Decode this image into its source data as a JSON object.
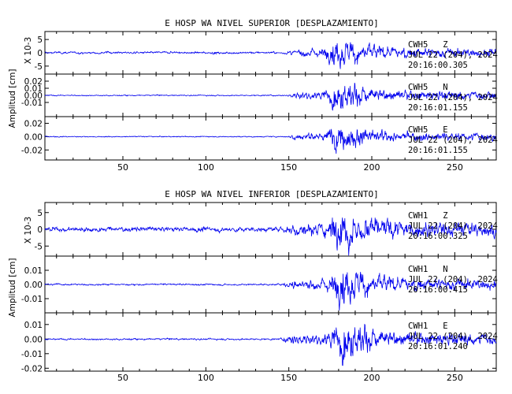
{
  "colors": {
    "trace": "#0000ee",
    "axis": "#000000",
    "background": "#ffffff"
  },
  "chart_data": [
    {
      "type": "line",
      "title": "E HOSP WA NIVEL SUPERIOR [DESPLAZAMIENTO]",
      "ylabel": "Amplitud [cm]",
      "xlim": [
        3,
        275
      ],
      "x_ticks": [
        50,
        100,
        150,
        200,
        250
      ],
      "event_start": 148,
      "event_peak": 178,
      "panels": [
        {
          "channel": "CWH5   Z",
          "date": "JUL 22 (204), 2024",
          "time": "20:16:00.305",
          "scale_label": "X 10-3",
          "ylim": [
            -8,
            8
          ],
          "yticks": [
            5,
            0,
            -5
          ],
          "ytick_labels": [
            "5",
            "0",
            "-5"
          ],
          "noise_amp": 0.6,
          "event_amp": 5.8
        },
        {
          "channel": "CWH5   N",
          "date": "JUL 22 (204), 2024",
          "time": "20:16:01.155",
          "ylim": [
            -0.03,
            0.03
          ],
          "yticks": [
            0.02,
            0.01,
            0.0,
            -0.01
          ],
          "ytick_labels": [
            "0.02",
            "0.01",
            "0.00",
            "-0.01"
          ],
          "noise_amp": 0.0012,
          "event_amp": 0.022
        },
        {
          "channel": "CWH5   E",
          "date": "JUL 22 (204), 2024",
          "time": "20:16:01.155",
          "ylim": [
            -0.035,
            0.03
          ],
          "yticks": [
            0.02,
            0.0,
            -0.02
          ],
          "ytick_labels": [
            "0.02",
            "0.00",
            "-0.02"
          ],
          "noise_amp": 0.0012,
          "event_amp": 0.022
        }
      ]
    },
    {
      "type": "line",
      "title": "E HOSP WA NIVEL INFERIOR [DESPLAZAMIENTO]",
      "ylabel": "Amplitud [cm]",
      "xlim": [
        3,
        275
      ],
      "x_ticks": [
        50,
        100,
        150,
        200,
        250
      ],
      "event_start": 145,
      "event_peak": 180,
      "panels": [
        {
          "channel": "CWH1   Z",
          "date": "JUL 22 (204), 2024",
          "time": "20:16:00.325",
          "scale_label": "X 10-3",
          "ylim": [
            -8,
            8
          ],
          "yticks": [
            5,
            0,
            -5
          ],
          "ytick_labels": [
            "5",
            "0",
            "-5"
          ],
          "noise_amp": 1.1,
          "event_amp": 6.2
        },
        {
          "channel": "CWH1   N",
          "date": "JUL 22 (204), 2024",
          "time": "20:16:00.415",
          "ylim": [
            -0.02,
            0.02
          ],
          "yticks": [
            0.01,
            0.0,
            -0.01
          ],
          "ytick_labels": [
            "0.01",
            "0.00",
            "-0.01"
          ],
          "noise_amp": 0.0009,
          "event_amp": 0.015
        },
        {
          "channel": "CWH1   E",
          "date": "JUL 22 (204), 2024",
          "time": "20:16:01.240",
          "ylim": [
            -0.022,
            0.018
          ],
          "yticks": [
            0.01,
            0.0,
            -0.01,
            -0.02
          ],
          "ytick_labels": [
            "0.01",
            "0.00",
            "-0.01",
            "-0.02"
          ],
          "noise_amp": 0.0009,
          "event_amp": 0.015
        }
      ]
    }
  ]
}
